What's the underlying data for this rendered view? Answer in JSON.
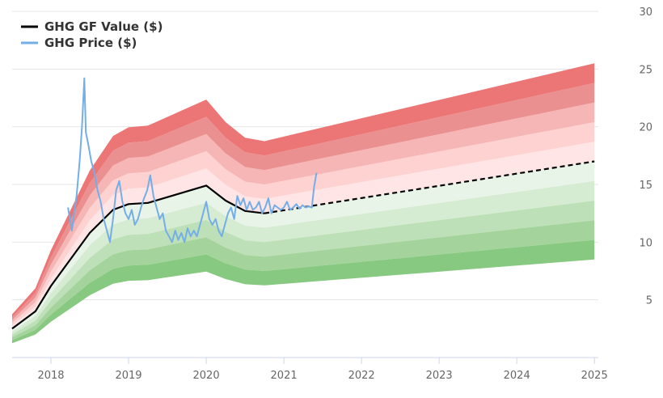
{
  "chart_data": {
    "type": "area",
    "title": "",
    "xlabel": "",
    "ylabel": "",
    "x_ticks": [
      "2018",
      "2019",
      "2020",
      "2021",
      "2022",
      "2023",
      "2024",
      "2025"
    ],
    "y_ticks": [
      "5",
      "10",
      "15",
      "20",
      "25",
      "30"
    ],
    "xlim": [
      2017.5,
      2025.05
    ],
    "ylim": [
      0,
      30
    ],
    "grid": "horizontal",
    "legend_position": "top-left",
    "legend": [
      {
        "label": "GHG GF Value ($)",
        "color": "#000000"
      },
      {
        "label": "GHG Price ($)",
        "color": "#74aee7"
      }
    ],
    "gf_value": {
      "name": "GHG GF Value ($)",
      "x": [
        2017.5,
        2017.8,
        2018.0,
        2018.5,
        2018.8,
        2019.0,
        2019.25,
        2019.5,
        2019.75,
        2020.0,
        2020.25,
        2020.5,
        2020.75
      ],
      "y": [
        2.5,
        4.0,
        6.2,
        10.8,
        12.8,
        13.3,
        13.4,
        13.9,
        14.4,
        14.9,
        13.6,
        12.7,
        12.5
      ],
      "projection_x": [
        2020.75,
        2025.0
      ],
      "projection_y": [
        12.5,
        17.0
      ]
    },
    "bands": {
      "upper_multipliers": [
        1.1,
        1.2,
        1.3,
        1.4,
        1.5
      ],
      "lower_multipliers": [
        0.9,
        0.8,
        0.7,
        0.6,
        0.5
      ],
      "upper_colors": [
        "#ffe5e5",
        "#ffd2d2",
        "#f6b6b6",
        "#eb9090",
        "#ec7575"
      ],
      "lower_colors": [
        "#e9f4e8",
        "#d5ebd2",
        "#bee0b8",
        "#a4d49b",
        "#88c981"
      ]
    },
    "price": {
      "name": "GHG Price ($)",
      "x": [
        2018.22,
        2018.27,
        2018.3,
        2018.33,
        2018.37,
        2018.4,
        2018.43,
        2018.45,
        2018.48,
        2018.52,
        2018.56,
        2018.6,
        2018.64,
        2018.68,
        2018.72,
        2018.76,
        2018.8,
        2018.84,
        2018.88,
        2018.92,
        2018.96,
        2019.0,
        2019.04,
        2019.08,
        2019.12,
        2019.16,
        2019.2,
        2019.24,
        2019.28,
        2019.32,
        2019.36,
        2019.4,
        2019.44,
        2019.48,
        2019.52,
        2019.56,
        2019.6,
        2019.64,
        2019.68,
        2019.72,
        2019.76,
        2019.8,
        2019.84,
        2019.88,
        2019.92,
        2019.96,
        2020.0,
        2020.04,
        2020.08,
        2020.12,
        2020.16,
        2020.2,
        2020.24,
        2020.28,
        2020.32,
        2020.36,
        2020.4,
        2020.44,
        2020.48,
        2020.52,
        2020.56,
        2020.6,
        2020.64,
        2020.68,
        2020.72,
        2020.76,
        2020.8,
        2020.84,
        2020.88,
        2020.92,
        2020.96,
        2021.0,
        2021.04,
        2021.08,
        2021.12,
        2021.16,
        2021.2,
        2021.24,
        2021.28,
        2021.32,
        2021.36,
        2021.39,
        2021.42
      ],
      "y": [
        13.0,
        11.0,
        12.6,
        14.0,
        17.0,
        20.0,
        24.2,
        19.5,
        18.5,
        17.0,
        16.0,
        14.5,
        13.5,
        12.0,
        11.0,
        10.0,
        12.0,
        14.5,
        15.3,
        13.5,
        12.5,
        12.0,
        12.8,
        11.5,
        12.0,
        13.0,
        13.8,
        14.5,
        15.8,
        14.0,
        13.0,
        12.0,
        12.5,
        11.0,
        10.5,
        10.0,
        11.0,
        10.2,
        10.8,
        10.0,
        11.2,
        10.5,
        11.0,
        10.5,
        11.5,
        12.5,
        13.5,
        12.0,
        11.5,
        12.0,
        11.0,
        10.5,
        11.5,
        12.5,
        13.0,
        12.0,
        14.0,
        13.2,
        13.8,
        12.8,
        13.5,
        12.8,
        13.0,
        13.5,
        12.5,
        13.0,
        13.8,
        12.5,
        13.2,
        13.0,
        12.8,
        13.0,
        13.5,
        12.8,
        13.0,
        13.3,
        12.9,
        13.2,
        13.0,
        13.1,
        13.0,
        14.8,
        16.0
      ]
    }
  }
}
